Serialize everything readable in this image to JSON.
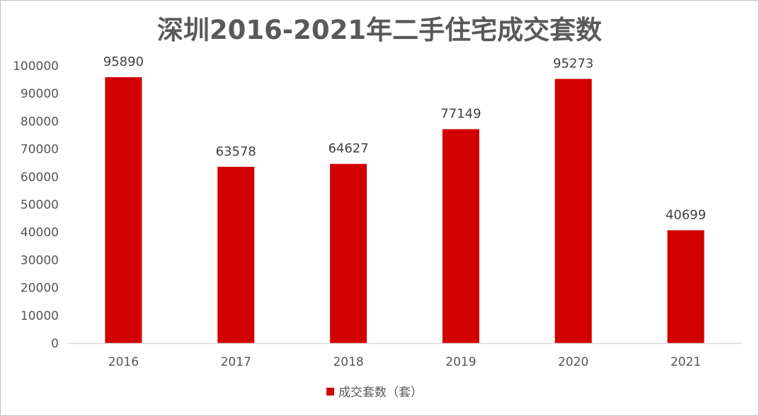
{
  "chart_data": {
    "type": "bar",
    "title": "深圳2016-2021年二手住宅成交套数",
    "categories": [
      "2016",
      "2017",
      "2018",
      "2019",
      "2020",
      "2021"
    ],
    "series": [
      {
        "name": "成交套数（套）",
        "values": [
          95890,
          63578,
          64627,
          77149,
          95273,
          40699
        ],
        "color": "#D20000"
      }
    ],
    "xlabel": "",
    "ylabel": "",
    "ylim": [
      0,
      100000
    ],
    "yticks": [
      0,
      10000,
      20000,
      30000,
      40000,
      50000,
      60000,
      70000,
      80000,
      90000,
      100000
    ],
    "grid": false,
    "legend": "bottom-center",
    "data_labels": true
  }
}
